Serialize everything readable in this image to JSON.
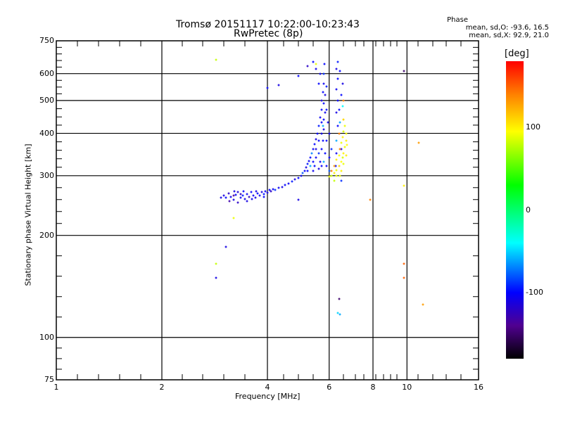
{
  "chart_data": {
    "type": "scatter",
    "title": "Tromsø 20151117 10:22:00-10:23:43",
    "subtitle": "RwPretec (8p)",
    "xlabel": "Frequency [MHz]",
    "ylabel": "Stationary phase Virtual Height [km]",
    "xscale": "log",
    "yscale": "log",
    "xlim": [
      1,
      16
    ],
    "ylim": [
      75,
      750
    ],
    "xticks": [
      "1",
      "2",
      "4",
      "6",
      "8",
      "10",
      "16"
    ],
    "xtick_values": [
      1,
      2,
      4,
      6,
      8,
      10,
      16
    ],
    "yticks": [
      "75",
      "100",
      "200",
      "300",
      "400",
      "500",
      "600",
      "750"
    ],
    "ytick_values": [
      75,
      100,
      200,
      300,
      400,
      500,
      600,
      750
    ],
    "grid_x": [
      2,
      4,
      6,
      8,
      10
    ],
    "grid_y": [
      100,
      200,
      300,
      400,
      500,
      600
    ],
    "grid": true,
    "stats": {
      "heading": "Phase",
      "line_o": "mean, sd,O: -93.6, 16.5",
      "line_x": "mean, sd,X:  92.9, 21.0"
    },
    "colorbar": {
      "label": "[deg]",
      "range": [
        -180,
        180
      ],
      "ticks": [
        "100",
        "0",
        "-100"
      ],
      "tick_values": [
        100,
        0,
        -100
      ],
      "stops": [
        [
          -180,
          "#000000"
        ],
        [
          -140,
          "#500090"
        ],
        [
          -100,
          "#0000ff"
        ],
        [
          -40,
          "#00ffff"
        ],
        [
          30,
          "#00ff00"
        ],
        [
          95,
          "#ffff00"
        ],
        [
          140,
          "#ff8000"
        ],
        [
          180,
          "#ff0000"
        ]
      ]
    },
    "point_fields": [
      "frequency_MHz",
      "height_km",
      "phase_deg"
    ],
    "points": [
      [
        3.0,
        262,
        -110
      ],
      [
        3.05,
        258,
        -100
      ],
      [
        3.1,
        266,
        -120
      ],
      [
        3.15,
        260,
        -105
      ],
      [
        3.2,
        255,
        -110
      ],
      [
        3.25,
        263,
        -100
      ],
      [
        3.3,
        268,
        -115
      ],
      [
        3.35,
        258,
        -105
      ],
      [
        3.4,
        262,
        -95
      ],
      [
        3.45,
        256,
        -110
      ],
      [
        3.5,
        265,
        -105
      ],
      [
        3.55,
        260,
        -120
      ],
      [
        3.6,
        268,
        -100
      ],
      [
        3.65,
        262,
        -105
      ],
      [
        3.7,
        258,
        -110
      ],
      [
        3.75,
        266,
        -100
      ],
      [
        3.8,
        262,
        -105
      ],
      [
        3.85,
        268,
        -110
      ],
      [
        3.9,
        265,
        -95
      ],
      [
        3.95,
        270,
        -105
      ],
      [
        4.0,
        267,
        -110
      ],
      [
        4.05,
        272,
        -100
      ],
      [
        4.1,
        270,
        -120
      ],
      [
        4.15,
        274,
        -105
      ],
      [
        4.2,
        272,
        -90
      ],
      [
        4.3,
        276,
        -105
      ],
      [
        4.4,
        278,
        -110
      ],
      [
        4.5,
        282,
        -100
      ],
      [
        4.6,
        285,
        -105
      ],
      [
        4.7,
        288,
        -95
      ],
      [
        4.8,
        292,
        -110
      ],
      [
        3.12,
        252,
        -130
      ],
      [
        3.22,
        270,
        -110
      ],
      [
        3.3,
        250,
        -120
      ],
      [
        3.42,
        270,
        -100
      ],
      [
        3.5,
        252,
        -110
      ],
      [
        3.62,
        256,
        -105
      ],
      [
        3.2,
        262,
        -140
      ],
      [
        3.35,
        265,
        -125
      ],
      [
        2.95,
        258,
        -110
      ],
      [
        3.72,
        270,
        -110
      ],
      [
        3.9,
        260,
        -100
      ],
      [
        4.9,
        296,
        -100
      ],
      [
        5.0,
        300,
        -105
      ],
      [
        5.05,
        305,
        -80
      ],
      [
        5.1,
        310,
        -100
      ],
      [
        5.15,
        318,
        -110
      ],
      [
        5.2,
        325,
        -95
      ],
      [
        5.25,
        332,
        -105
      ],
      [
        5.3,
        340,
        -100
      ],
      [
        5.35,
        350,
        -70
      ],
      [
        5.4,
        360,
        -105
      ],
      [
        5.45,
        372,
        -100
      ],
      [
        5.5,
        385,
        -110
      ],
      [
        5.55,
        400,
        -100
      ],
      [
        5.6,
        420,
        -95
      ],
      [
        5.65,
        445,
        -105
      ],
      [
        5.7,
        470,
        -100
      ],
      [
        5.72,
        500,
        -110
      ],
      [
        5.75,
        530,
        -100
      ],
      [
        5.78,
        560,
        -105
      ],
      [
        5.8,
        600,
        -90
      ],
      [
        5.82,
        640,
        -100
      ],
      [
        5.2,
        310,
        -100
      ],
      [
        5.3,
        320,
        -60
      ],
      [
        5.4,
        330,
        -100
      ],
      [
        5.5,
        340,
        -105
      ],
      [
        5.6,
        350,
        -90
      ],
      [
        5.7,
        360,
        -100
      ],
      [
        5.5,
        360,
        -110
      ],
      [
        5.6,
        380,
        -100
      ],
      [
        5.7,
        400,
        -105
      ],
      [
        5.75,
        420,
        -60
      ],
      [
        5.8,
        440,
        -100
      ],
      [
        5.85,
        460,
        -105
      ],
      [
        5.8,
        490,
        -100
      ],
      [
        5.85,
        520,
        -110
      ],
      [
        5.9,
        550,
        -95
      ],
      [
        5.7,
        430,
        -100
      ],
      [
        5.9,
        380,
        -100
      ],
      [
        6.0,
        400,
        -105
      ],
      [
        6.0,
        340,
        -100
      ],
      [
        6.1,
        360,
        -90
      ],
      [
        5.9,
        320,
        -100
      ],
      [
        6.0,
        310,
        -80
      ],
      [
        5.6,
        560,
        -100
      ],
      [
        5.65,
        600,
        -105
      ],
      [
        5.5,
        620,
        -110
      ],
      [
        5.4,
        650,
        -100
      ],
      [
        5.5,
        640,
        90
      ],
      [
        5.75,
        380,
        -100
      ],
      [
        5.8,
        410,
        -110
      ],
      [
        5.85,
        350,
        -100
      ],
      [
        5.65,
        330,
        -105
      ],
      [
        5.9,
        470,
        -100
      ],
      [
        5.95,
        430,
        -105
      ],
      [
        5.8,
        330,
        -60
      ],
      [
        5.7,
        320,
        -100
      ],
      [
        5.6,
        315,
        -110
      ],
      [
        5.45,
        320,
        -100
      ],
      [
        5.4,
        310,
        -105
      ],
      [
        6.25,
        320,
        -100
      ],
      [
        6.3,
        350,
        -105
      ],
      [
        6.3,
        380,
        -60
      ],
      [
        6.35,
        420,
        -100
      ],
      [
        6.3,
        460,
        -110
      ],
      [
        6.35,
        500,
        -100
      ],
      [
        6.3,
        540,
        -105
      ],
      [
        6.35,
        580,
        -100
      ],
      [
        6.3,
        620,
        -110
      ],
      [
        6.35,
        650,
        -95
      ],
      [
        6.4,
        470,
        -100
      ],
      [
        6.4,
        400,
        140
      ],
      [
        6.45,
        430,
        -60
      ],
      [
        6.5,
        520,
        -100
      ],
      [
        6.5,
        360,
        -110
      ],
      [
        6.55,
        560,
        -110
      ],
      [
        6.45,
        610,
        -100
      ],
      [
        6.6,
        500,
        140
      ],
      [
        6.55,
        480,
        -40
      ],
      [
        6.6,
        440,
        100
      ],
      [
        6.0,
        298,
        90
      ],
      [
        6.1,
        300,
        80
      ],
      [
        6.2,
        305,
        100
      ],
      [
        6.3,
        312,
        90
      ],
      [
        6.4,
        320,
        110
      ],
      [
        6.5,
        330,
        95
      ],
      [
        6.55,
        340,
        85
      ],
      [
        6.6,
        350,
        100
      ],
      [
        6.65,
        365,
        90
      ],
      [
        6.7,
        380,
        100
      ],
      [
        6.7,
        400,
        95
      ],
      [
        6.65,
        420,
        90
      ],
      [
        6.6,
        440,
        110
      ],
      [
        6.2,
        320,
        130
      ],
      [
        6.3,
        335,
        100
      ],
      [
        6.4,
        345,
        95
      ],
      [
        6.45,
        360,
        140
      ],
      [
        6.5,
        375,
        90
      ],
      [
        6.55,
        390,
        100
      ],
      [
        6.6,
        405,
        85
      ],
      [
        6.3,
        300,
        90
      ],
      [
        6.1,
        310,
        140
      ],
      [
        6.5,
        310,
        100
      ],
      [
        6.6,
        325,
        90
      ],
      [
        6.75,
        370,
        95
      ],
      [
        6.7,
        345,
        100
      ],
      [
        6.2,
        290,
        80
      ],
      [
        6.45,
        300,
        90
      ],
      [
        2.85,
        660,
        80
      ],
      [
        4.0,
        545,
        -100
      ],
      [
        4.3,
        555,
        -110
      ],
      [
        4.9,
        590,
        -100
      ],
      [
        5.2,
        630,
        -120
      ],
      [
        6.4,
        130,
        -150
      ],
      [
        6.35,
        118,
        -50
      ],
      [
        6.45,
        117,
        -60
      ],
      [
        2.85,
        165,
        80
      ],
      [
        2.85,
        150,
        -110
      ],
      [
        3.05,
        185,
        -110
      ],
      [
        3.2,
        225,
        90
      ],
      [
        4.9,
        255,
        -110
      ],
      [
        6.5,
        290,
        -90
      ],
      [
        7.85,
        255,
        140
      ],
      [
        9.8,
        280,
        100
      ],
      [
        9.8,
        165,
        150
      ],
      [
        9.8,
        150,
        150
      ],
      [
        10.8,
        375,
        130
      ],
      [
        11.1,
        125,
        130
      ],
      [
        9.8,
        610,
        -150
      ]
    ]
  }
}
